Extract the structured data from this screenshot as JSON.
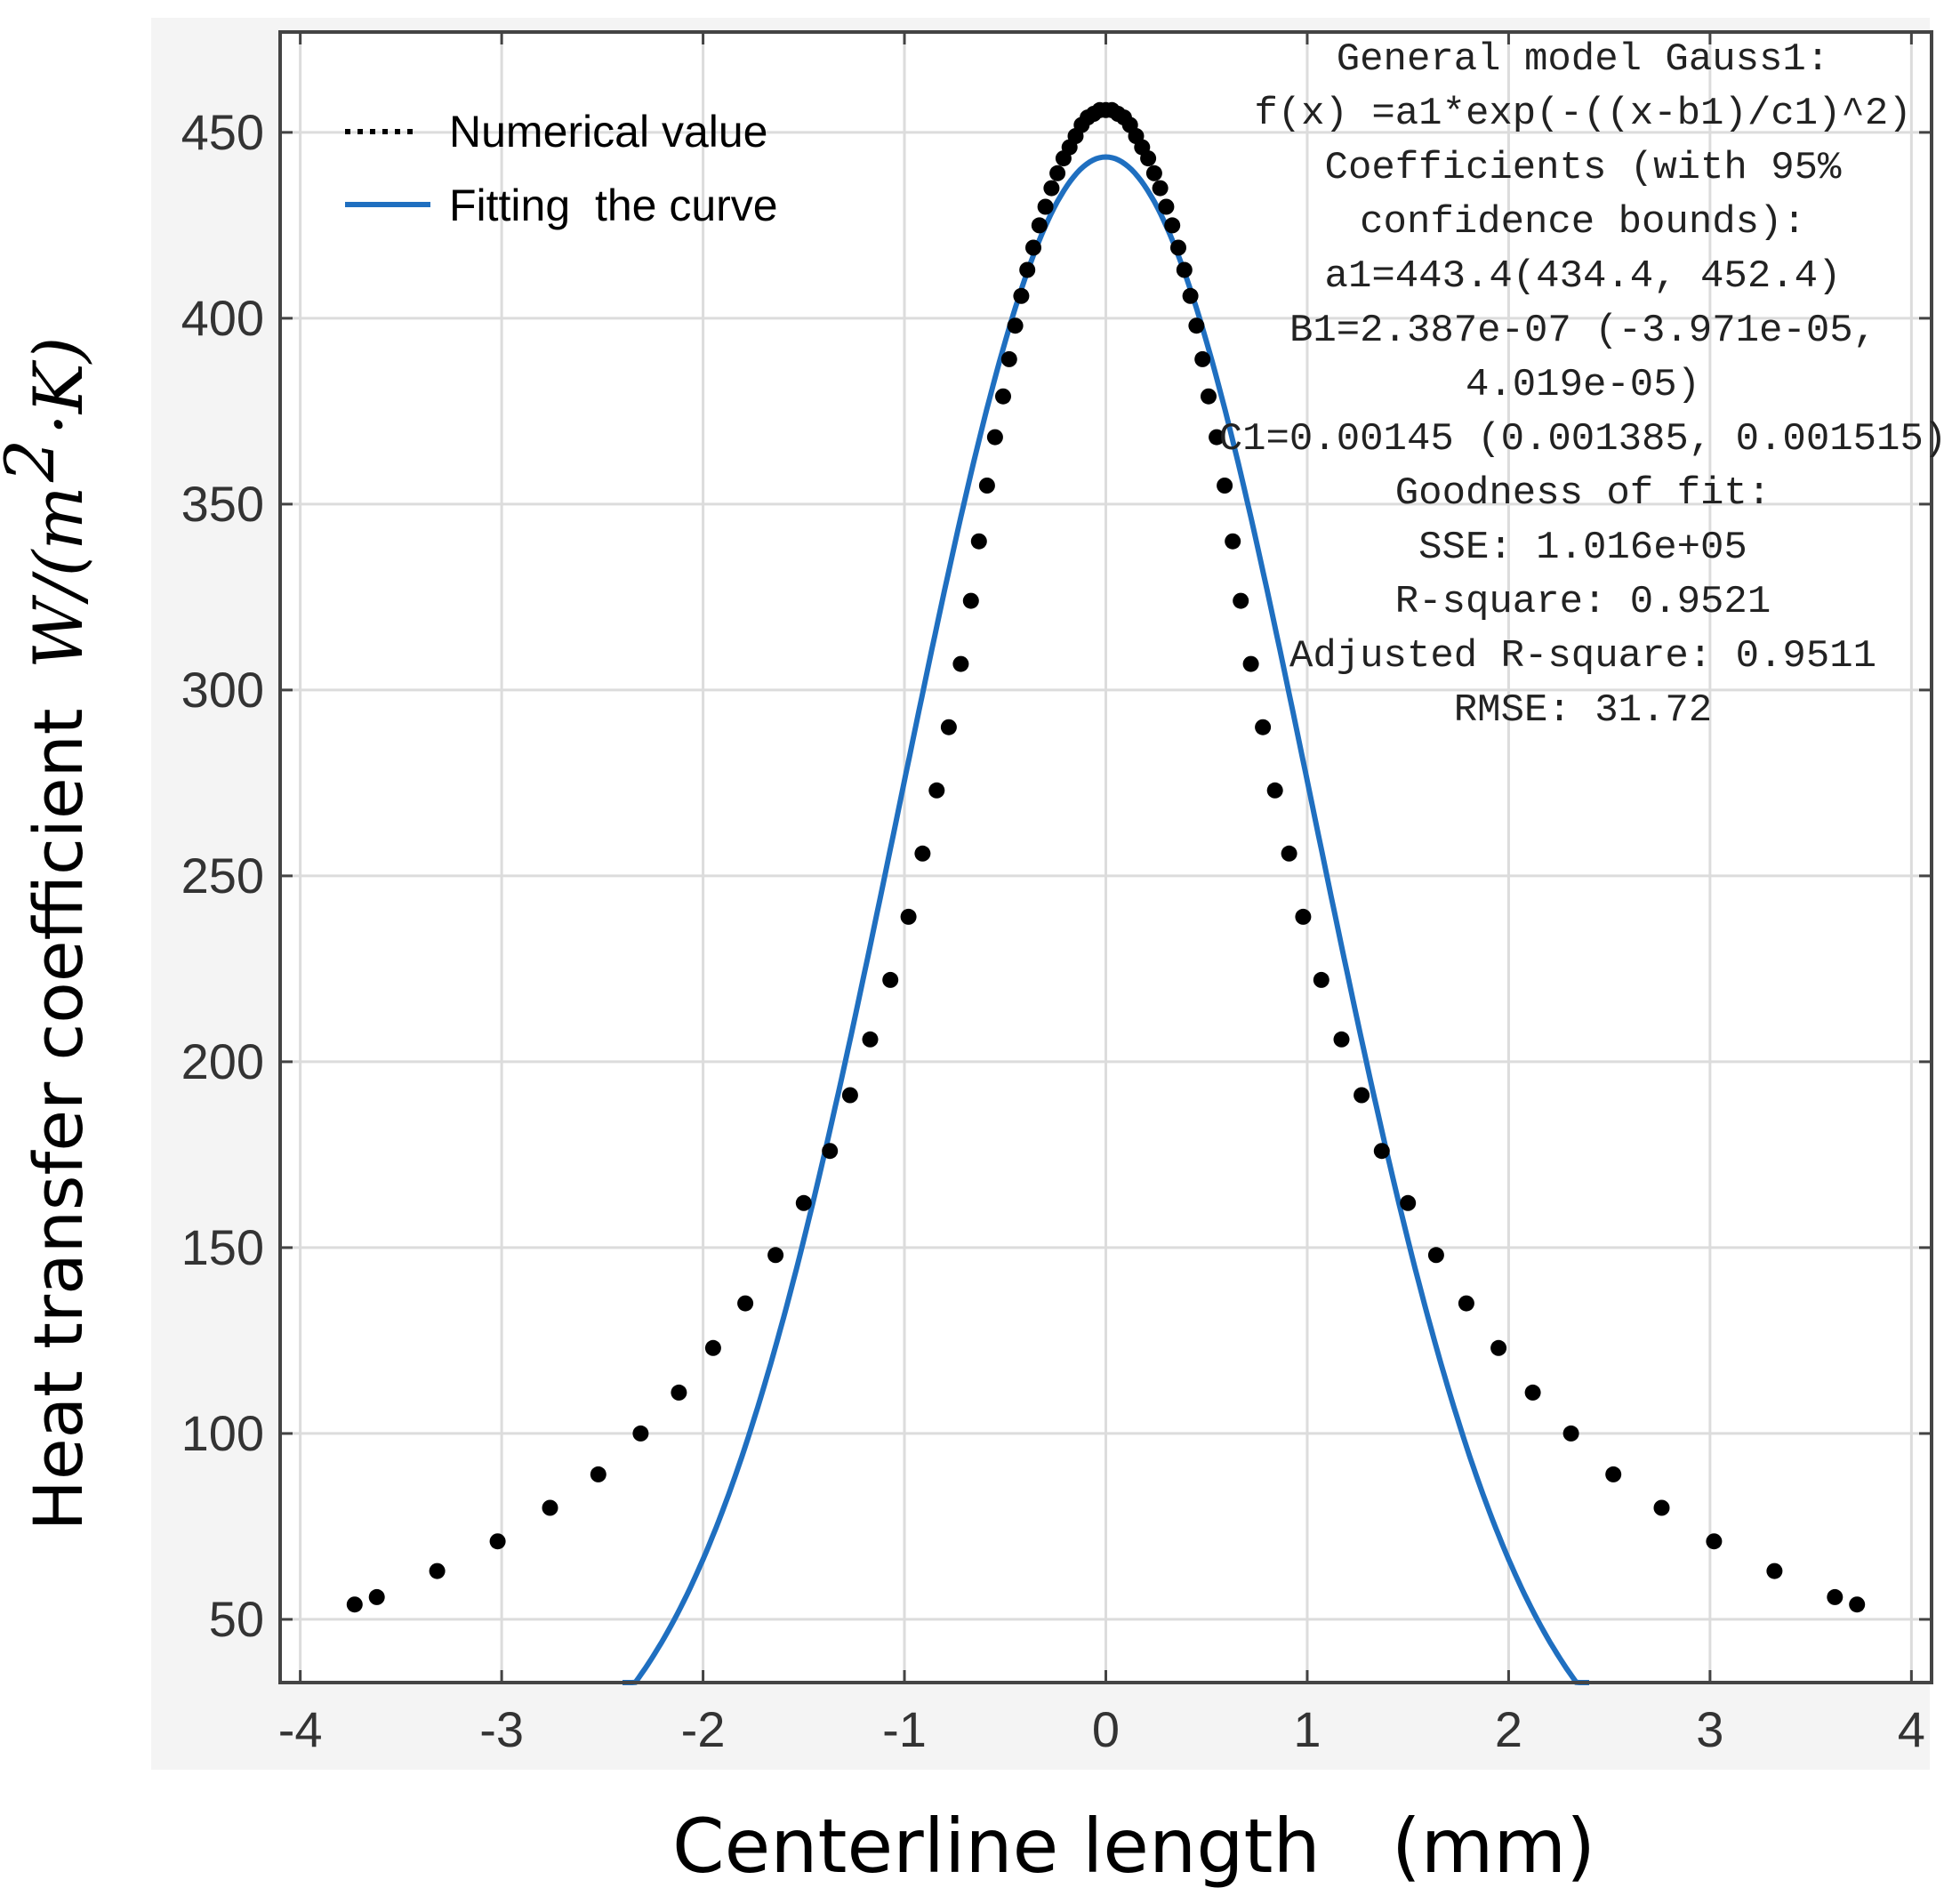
{
  "chart_data": {
    "type": "scatter",
    "title": "",
    "xlabel": "Centerline length   (mm)",
    "ylabel": {
      "text": "Heat transfer coefficient",
      "unit_prefix": "W/(m",
      "unit_exponent": "2",
      "unit_suffix": "·K)"
    },
    "xlim": [
      -4.1,
      4.1
    ],
    "ylim": [
      33,
      477
    ],
    "x_ticks": [
      -4,
      -3,
      -2,
      -1,
      0,
      1,
      2,
      3,
      4
    ],
    "x_tick_labels": [
      "-4",
      "-3",
      "-2",
      "-1",
      "0",
      "1",
      "2",
      "3",
      "4"
    ],
    "y_ticks": [
      50,
      100,
      150,
      200,
      250,
      300,
      350,
      400,
      450
    ],
    "y_tick_labels": [
      "50",
      "100",
      "150",
      "200",
      "250",
      "300",
      "350",
      "400",
      "450"
    ],
    "grid": true,
    "legend_position": "top-left",
    "legend": [
      "Numerical value",
      "Fitting  the curve"
    ],
    "colors": {
      "fit": "#1f6fc0",
      "points": "#000000",
      "grid": "#dcdcdc",
      "axes": "#444444"
    },
    "series": [
      {
        "name": "Numerical value",
        "kind": "points",
        "x": [
          -3.73,
          -3.62,
          -3.32,
          -3.02,
          -2.76,
          -2.52,
          -2.31,
          -2.12,
          -1.95,
          -1.79,
          -1.64,
          -1.5,
          -1.37,
          -1.27,
          -1.17,
          -1.07,
          -0.98,
          -0.91,
          -0.84,
          -0.78,
          -0.72,
          -0.67,
          -0.63,
          -0.59,
          -0.55,
          -0.51,
          -0.48,
          -0.45,
          -0.42,
          -0.39,
          -0.36,
          -0.33,
          -0.3,
          -0.27,
          -0.24,
          -0.21,
          -0.18,
          -0.15,
          -0.12,
          -0.09,
          -0.06,
          -0.03,
          0,
          0.03,
          0.06,
          0.09,
          0.12,
          0.15,
          0.18,
          0.21,
          0.24,
          0.27,
          0.3,
          0.33,
          0.36,
          0.39,
          0.42,
          0.45,
          0.48,
          0.51,
          0.55,
          0.59,
          0.63,
          0.67,
          0.72,
          0.78,
          0.84,
          0.91,
          0.98,
          1.07,
          1.17,
          1.27,
          1.37,
          1.5,
          1.64,
          1.79,
          1.95,
          2.12,
          2.31,
          2.52,
          2.76,
          3.02,
          3.32,
          3.62,
          3.73
        ],
        "y": [
          54,
          56,
          63,
          71,
          80,
          89,
          100,
          111,
          123,
          135,
          148,
          162,
          176,
          191,
          206,
          222,
          239,
          256,
          273,
          290,
          307,
          324,
          340,
          355,
          368,
          379,
          389,
          398,
          406,
          413,
          419,
          425,
          430,
          435,
          439,
          443,
          446,
          449,
          452,
          454,
          455,
          456,
          456,
          456,
          455,
          454,
          452,
          449,
          446,
          443,
          439,
          435,
          430,
          425,
          419,
          413,
          406,
          398,
          389,
          379,
          368,
          355,
          340,
          324,
          307,
          290,
          273,
          256,
          239,
          222,
          206,
          191,
          176,
          162,
          148,
          135,
          123,
          111,
          100,
          89,
          80,
          71,
          63,
          56,
          54
        ]
      },
      {
        "name": "Fitting  the curve",
        "kind": "gaussian",
        "a1": 443.4,
        "b1": 0,
        "c1": 1.45,
        "x_range": [
          -2.4,
          2.4
        ]
      }
    ],
    "annotation": [
      "General model Gauss1:",
      "f(x) =a1*exp(-((x-b1)/c1)^2)",
      "Coefficients (with 95%",
      "confidence bounds):",
      "a1=443.4(434.4, 452.4)",
      "B1=2.387e-07 (-3.971e-05,",
      "4.019e-05)",
      "C1=0.00145 (0.001385, 0.001515)",
      "Goodness of fit:",
      "SSE: 1.016e+05",
      "R-square: 0.9521",
      "Adjusted R-square: 0.9511",
      "RMSE: 31.72"
    ]
  }
}
